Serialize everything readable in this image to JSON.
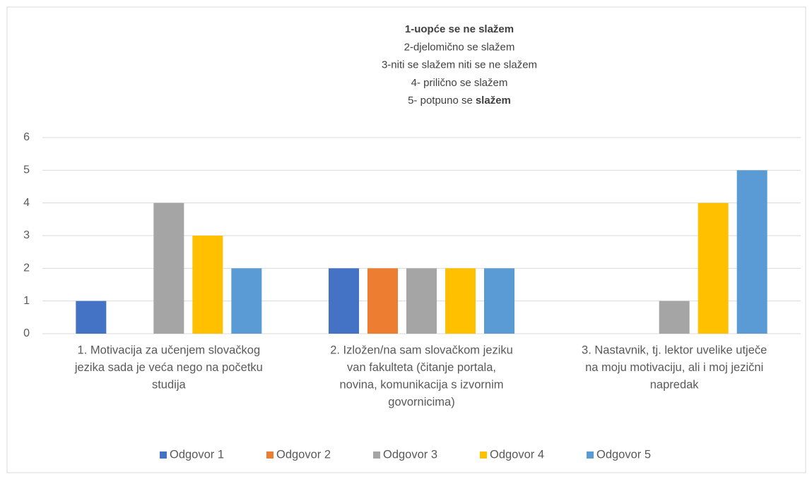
{
  "chart_data": {
    "type": "bar",
    "title": [
      "1-uopće se ne slažem",
      "2-djelomično se slažem",
      "3-niti se slažem niti se ne slažem",
      "4- prilično se slažem",
      [
        "5- potpuno se",
        "slažem"
      ]
    ],
    "categories": [
      [
        "1. Motivacija za učenjem slovačkog",
        "jezika sada je veća nego na početku",
        "studija"
      ],
      [
        "2. Izložen/na sam slovačkom jeziku",
        "van fakulteta (čitanje portala,",
        "novina, komunikacija s izvornim",
        "govornicima)"
      ],
      [
        "3. Nastavnik, tj. lektor uvelike utječe",
        "na moju motivaciju, ali i moj jezični",
        "napredak"
      ]
    ],
    "series": [
      {
        "name": "Odgovor 1",
        "color": "#4472c4",
        "values": [
          1,
          2,
          0
        ]
      },
      {
        "name": "Odgovor 2",
        "color": "#ed7d31",
        "values": [
          0,
          2,
          0
        ]
      },
      {
        "name": "Odgovor 3",
        "color": "#a5a5a5",
        "values": [
          4,
          2,
          1
        ]
      },
      {
        "name": "Odgovor 4",
        "color": "#ffc000",
        "values": [
          3,
          2,
          4
        ]
      },
      {
        "name": "Odgovor 5",
        "color": "#5b9bd5",
        "values": [
          2,
          2,
          5
        ]
      }
    ],
    "ylim": [
      0,
      6
    ],
    "yticks": [
      0,
      1,
      2,
      3,
      4,
      5,
      6
    ],
    "grid": true,
    "legend": "bottom"
  }
}
